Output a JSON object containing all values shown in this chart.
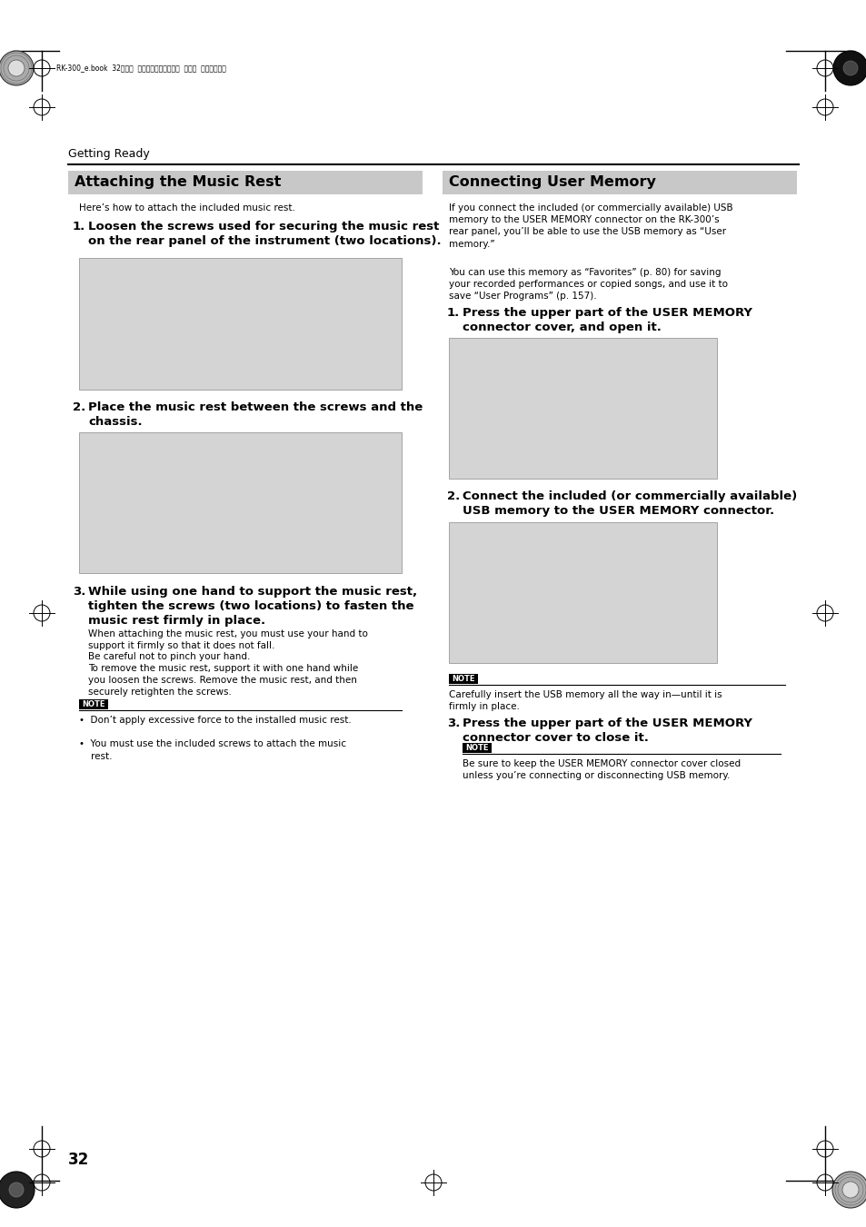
{
  "page_bg": "#ffffff",
  "header_text": "RK-300_e.book  32ページ  ２００８年９月１０日  水曜日  午後４時６分",
  "getting_ready": "Getting Ready",
  "left_section_title": "Attaching the Music Rest",
  "left_intro": "Here’s how to attach the included music rest.",
  "left_step1_bold": "Loosen the screws used for securing the music rest\non the rear panel of the instrument (two locations).",
  "left_step2_bold": "Place the music rest between the screws and the\nchassis.",
  "left_step3_bold": "While using one hand to support the music rest,\ntighten the screws (two locations) to fasten the\nmusic rest firmly in place.",
  "left_step3_body1": "When attaching the music rest, you must use your hand to\nsupport it firmly so that it does not fall.",
  "left_step3_body2": "Be careful not to pinch your hand.",
  "left_step3_body3": "To remove the music rest, support it with one hand while\nyou loosen the screws. Remove the music rest, and then\nsecurely retighten the screws.",
  "note_label": "NOTE",
  "left_note1": "•  Don’t apply excessive force to the installed music rest.",
  "left_note2": "•  You must use the included screws to attach the music\n    rest.",
  "right_section_title": "Connecting User Memory",
  "right_intro1": "If you connect the included (or commercially available) USB\nmemory to the USER MEMORY connector on the RK-300’s\nrear panel, you’ll be able to use the USB memory as “User\nmemory.”",
  "right_intro2": "You can use this memory as “Favorites” (p. 80) for saving\nyour recorded performances or copied songs, and use it to\nsave “User Programs” (p. 157).",
  "right_step1_bold": "Press the upper part of the USER MEMORY\nconnector cover, and open it.",
  "right_step2_bold": "Connect the included (or commercially available)\nUSB memory to the USER MEMORY connector.",
  "right_note_body": "Carefully insert the USB memory all the way in—until it is\nfirmly in place.",
  "right_step3_bold": "Press the upper part of the USER MEMORY\nconnector cover to close it.",
  "right_step3_note_body": "Be sure to keep the USER MEMORY connector cover closed\nunless you’re connecting or disconnecting USB memory.",
  "page_number": "32",
  "note_bg": "#000000",
  "note_text_color": "#ffffff",
  "section_bg": "#c8c8c8",
  "img_bg": "#d4d4d4",
  "img_border": "#888888"
}
